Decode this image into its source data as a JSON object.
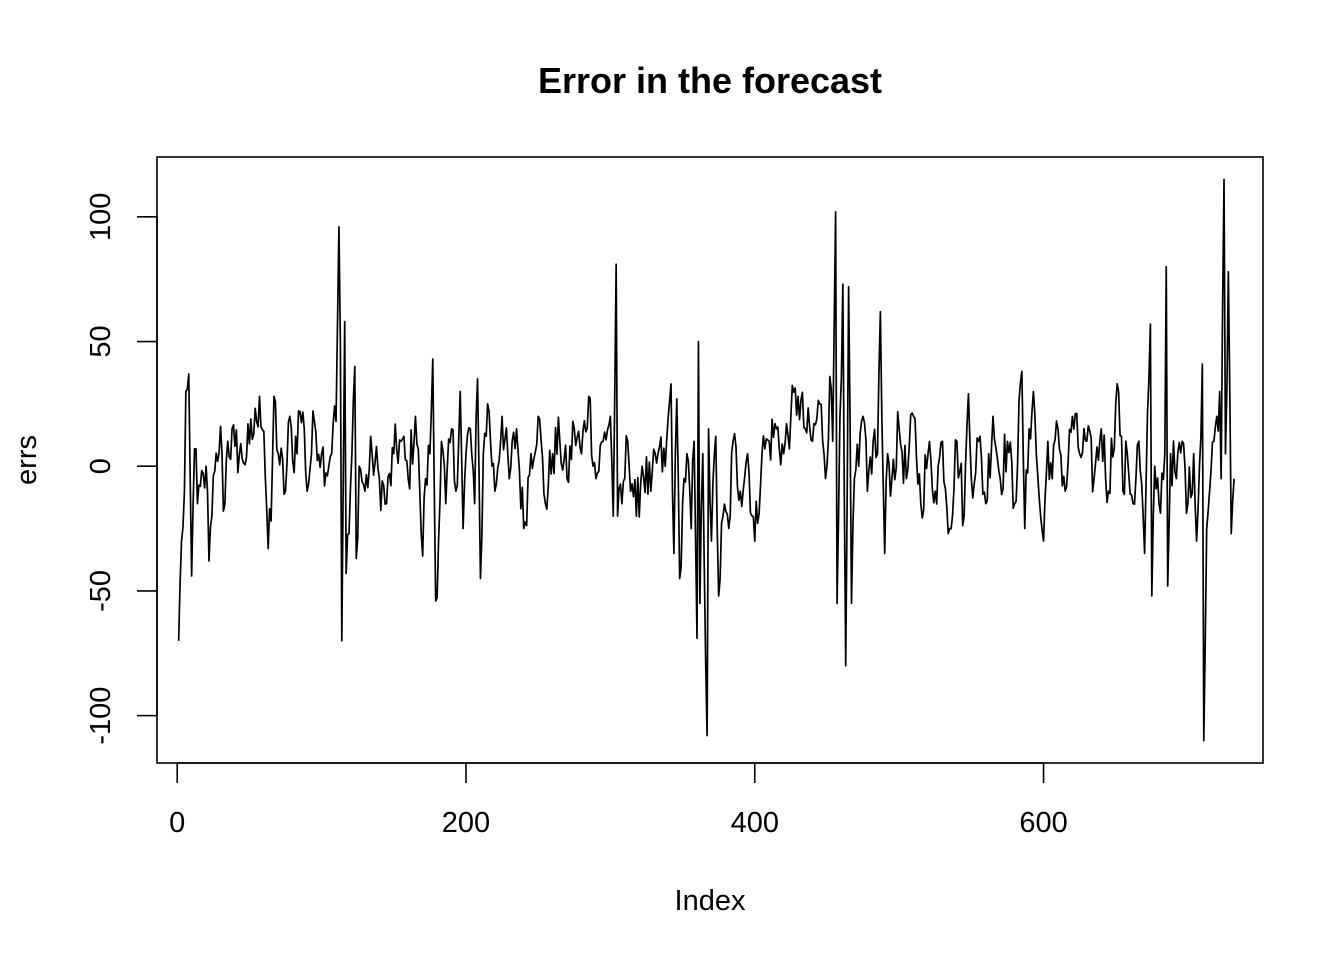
{
  "chart_data": {
    "type": "line",
    "title": "Error in the forecast",
    "xlabel": "Index",
    "ylabel": "errs",
    "xlim": [
      -14,
      752
    ],
    "ylim": [
      -119,
      124
    ],
    "x_ticks": [
      0,
      200,
      400,
      600
    ],
    "x_tick_labels": [
      "0",
      "200",
      "400",
      "600"
    ],
    "y_ticks": [
      -100,
      -50,
      0,
      50,
      100
    ],
    "y_tick_labels": [
      "-100",
      "-50",
      "0",
      "50",
      "100"
    ],
    "grid": false,
    "legend": "none",
    "series": [
      {
        "color": "#000000",
        "anchors": [
          [
            1,
            -70
          ],
          [
            3,
            -30
          ],
          [
            5,
            -10
          ],
          [
            6,
            30
          ],
          [
            7,
            31
          ],
          [
            8,
            37
          ],
          [
            9,
            -5
          ],
          [
            10,
            -44
          ],
          [
            12,
            7
          ],
          [
            14,
            -15
          ],
          [
            16,
            -8
          ],
          [
            18,
            -3
          ],
          [
            20,
            0
          ],
          [
            22,
            -38
          ],
          [
            24,
            -20
          ],
          [
            26,
            -2
          ],
          [
            28,
            2
          ],
          [
            30,
            16
          ],
          [
            32,
            -18
          ],
          [
            35,
            10
          ],
          [
            40,
            8
          ],
          [
            45,
            3
          ],
          [
            50,
            9
          ],
          [
            55,
            18
          ],
          [
            57,
            28
          ],
          [
            60,
            14
          ],
          [
            63,
            -33
          ],
          [
            65,
            -22
          ],
          [
            67,
            28
          ],
          [
            70,
            5
          ],
          [
            75,
            -10
          ],
          [
            78,
            20
          ],
          [
            80,
            2
          ],
          [
            85,
            22
          ],
          [
            88,
            15
          ],
          [
            90,
            -10
          ],
          [
            95,
            18
          ],
          [
            100,
            5
          ],
          [
            105,
            0
          ],
          [
            108,
            17
          ],
          [
            110,
            18
          ],
          [
            112,
            96
          ],
          [
            113,
            50
          ],
          [
            114,
            -70
          ],
          [
            116,
            58
          ],
          [
            117,
            -43
          ],
          [
            119,
            -27
          ],
          [
            121,
            5
          ],
          [
            123,
            40
          ],
          [
            124,
            -37
          ],
          [
            126,
            0
          ],
          [
            130,
            -10
          ],
          [
            135,
            5
          ],
          [
            140,
            -5
          ],
          [
            145,
            -15
          ],
          [
            150,
            5
          ],
          [
            155,
            10
          ],
          [
            160,
            -5
          ],
          [
            165,
            20
          ],
          [
            168,
            -10
          ],
          [
            170,
            -36
          ],
          [
            172,
            -5
          ],
          [
            175,
            5
          ],
          [
            177,
            43
          ],
          [
            179,
            -54
          ],
          [
            181,
            -30
          ],
          [
            183,
            10
          ],
          [
            186,
            -15
          ],
          [
            190,
            15
          ],
          [
            193,
            -10
          ],
          [
            196,
            30
          ],
          [
            198,
            -25
          ],
          [
            200,
            5
          ],
          [
            203,
            15
          ],
          [
            206,
            -15
          ],
          [
            208,
            35
          ],
          [
            210,
            -45
          ],
          [
            212,
            5
          ],
          [
            215,
            25
          ],
          [
            220,
            -10
          ],
          [
            225,
            20
          ],
          [
            230,
            -5
          ],
          [
            235,
            15
          ],
          [
            240,
            -25
          ],
          [
            245,
            5
          ],
          [
            250,
            20
          ],
          [
            255,
            -15
          ],
          [
            260,
            5
          ],
          [
            265,
            10
          ],
          [
            270,
            -5
          ],
          [
            275,
            15
          ],
          [
            280,
            5
          ],
          [
            285,
            28
          ],
          [
            290,
            -5
          ],
          [
            295,
            10
          ],
          [
            300,
            20
          ],
          [
            302,
            -20
          ],
          [
            304,
            81
          ],
          [
            305,
            -20
          ],
          [
            308,
            -15
          ],
          [
            312,
            10
          ],
          [
            318,
            -20
          ],
          [
            322,
            0
          ],
          [
            328,
            -10
          ],
          [
            333,
            5
          ],
          [
            338,
            0
          ],
          [
            342,
            33
          ],
          [
            344,
            -35
          ],
          [
            346,
            27
          ],
          [
            348,
            -45
          ],
          [
            350,
            -15
          ],
          [
            353,
            5
          ],
          [
            356,
            -25
          ],
          [
            358,
            10
          ],
          [
            360,
            -69
          ],
          [
            361,
            50
          ],
          [
            362,
            -55
          ],
          [
            364,
            5
          ],
          [
            367,
            -108
          ],
          [
            368,
            15
          ],
          [
            370,
            -30
          ],
          [
            373,
            12
          ],
          [
            375,
            -52
          ],
          [
            378,
            -20
          ],
          [
            382,
            -25
          ],
          [
            385,
            10
          ],
          [
            390,
            -10
          ],
          [
            395,
            5
          ],
          [
            400,
            -30
          ],
          [
            405,
            5
          ],
          [
            410,
            10
          ],
          [
            415,
            15
          ],
          [
            420,
            5
          ],
          [
            425,
            20
          ],
          [
            430,
            28
          ],
          [
            435,
            15
          ],
          [
            440,
            10
          ],
          [
            445,
            25
          ],
          [
            450,
            0
          ],
          [
            452,
            36
          ],
          [
            454,
            10
          ],
          [
            456,
            102
          ],
          [
            457,
            -55
          ],
          [
            459,
            20
          ],
          [
            461,
            73
          ],
          [
            462,
            -10
          ],
          [
            463,
            -80
          ],
          [
            465,
            72
          ],
          [
            467,
            -55
          ],
          [
            469,
            -5
          ],
          [
            472,
            0
          ],
          [
            475,
            20
          ],
          [
            478,
            -10
          ],
          [
            482,
            10
          ],
          [
            485,
            5
          ],
          [
            487,
            62
          ],
          [
            488,
            20
          ],
          [
            490,
            -35
          ],
          [
            492,
            5
          ],
          [
            495,
            -5
          ],
          [
            500,
            15
          ],
          [
            505,
            -5
          ],
          [
            510,
            20
          ],
          [
            515,
            -15
          ],
          [
            520,
            5
          ],
          [
            525,
            -10
          ],
          [
            530,
            10
          ],
          [
            535,
            -25
          ],
          [
            540,
            10
          ],
          [
            545,
            -20
          ],
          [
            548,
            29
          ],
          [
            550,
            -5
          ],
          [
            555,
            10
          ],
          [
            560,
            -15
          ],
          [
            565,
            20
          ],
          [
            570,
            -5
          ],
          [
            575,
            10
          ],
          [
            580,
            -15
          ],
          [
            585,
            38
          ],
          [
            587,
            -25
          ],
          [
            590,
            15
          ],
          [
            593,
            30
          ],
          [
            595,
            5
          ],
          [
            598,
            -20
          ],
          [
            600,
            -30
          ],
          [
            603,
            10
          ],
          [
            606,
            -5
          ],
          [
            610,
            15
          ],
          [
            615,
            -10
          ],
          [
            620,
            20
          ],
          [
            625,
            5
          ],
          [
            630,
            10
          ],
          [
            635,
            -5
          ],
          [
            640,
            15
          ],
          [
            645,
            -10
          ],
          [
            650,
            25
          ],
          [
            652,
            30
          ],
          [
            655,
            -10
          ],
          [
            658,
            5
          ],
          [
            662,
            -15
          ],
          [
            666,
            10
          ],
          [
            670,
            -35
          ],
          [
            673,
            35
          ],
          [
            674,
            57
          ],
          [
            675,
            -52
          ],
          [
            677,
            0
          ],
          [
            680,
            -15
          ],
          [
            684,
            5
          ],
          [
            685,
            80
          ],
          [
            686,
            -48
          ],
          [
            688,
            5
          ],
          [
            692,
            -5
          ],
          [
            696,
            10
          ],
          [
            700,
            -15
          ],
          [
            704,
            5
          ],
          [
            706,
            -30
          ],
          [
            708,
            0
          ],
          [
            710,
            41
          ],
          [
            711,
            -110
          ],
          [
            713,
            -25
          ],
          [
            715,
            -10
          ],
          [
            718,
            10
          ],
          [
            720,
            20
          ],
          [
            722,
            30
          ],
          [
            723,
            -5
          ],
          [
            725,
            115
          ],
          [
            726,
            5
          ],
          [
            728,
            78
          ],
          [
            729,
            30
          ],
          [
            730,
            -27
          ],
          [
            732,
            -5
          ]
        ]
      }
    ]
  }
}
